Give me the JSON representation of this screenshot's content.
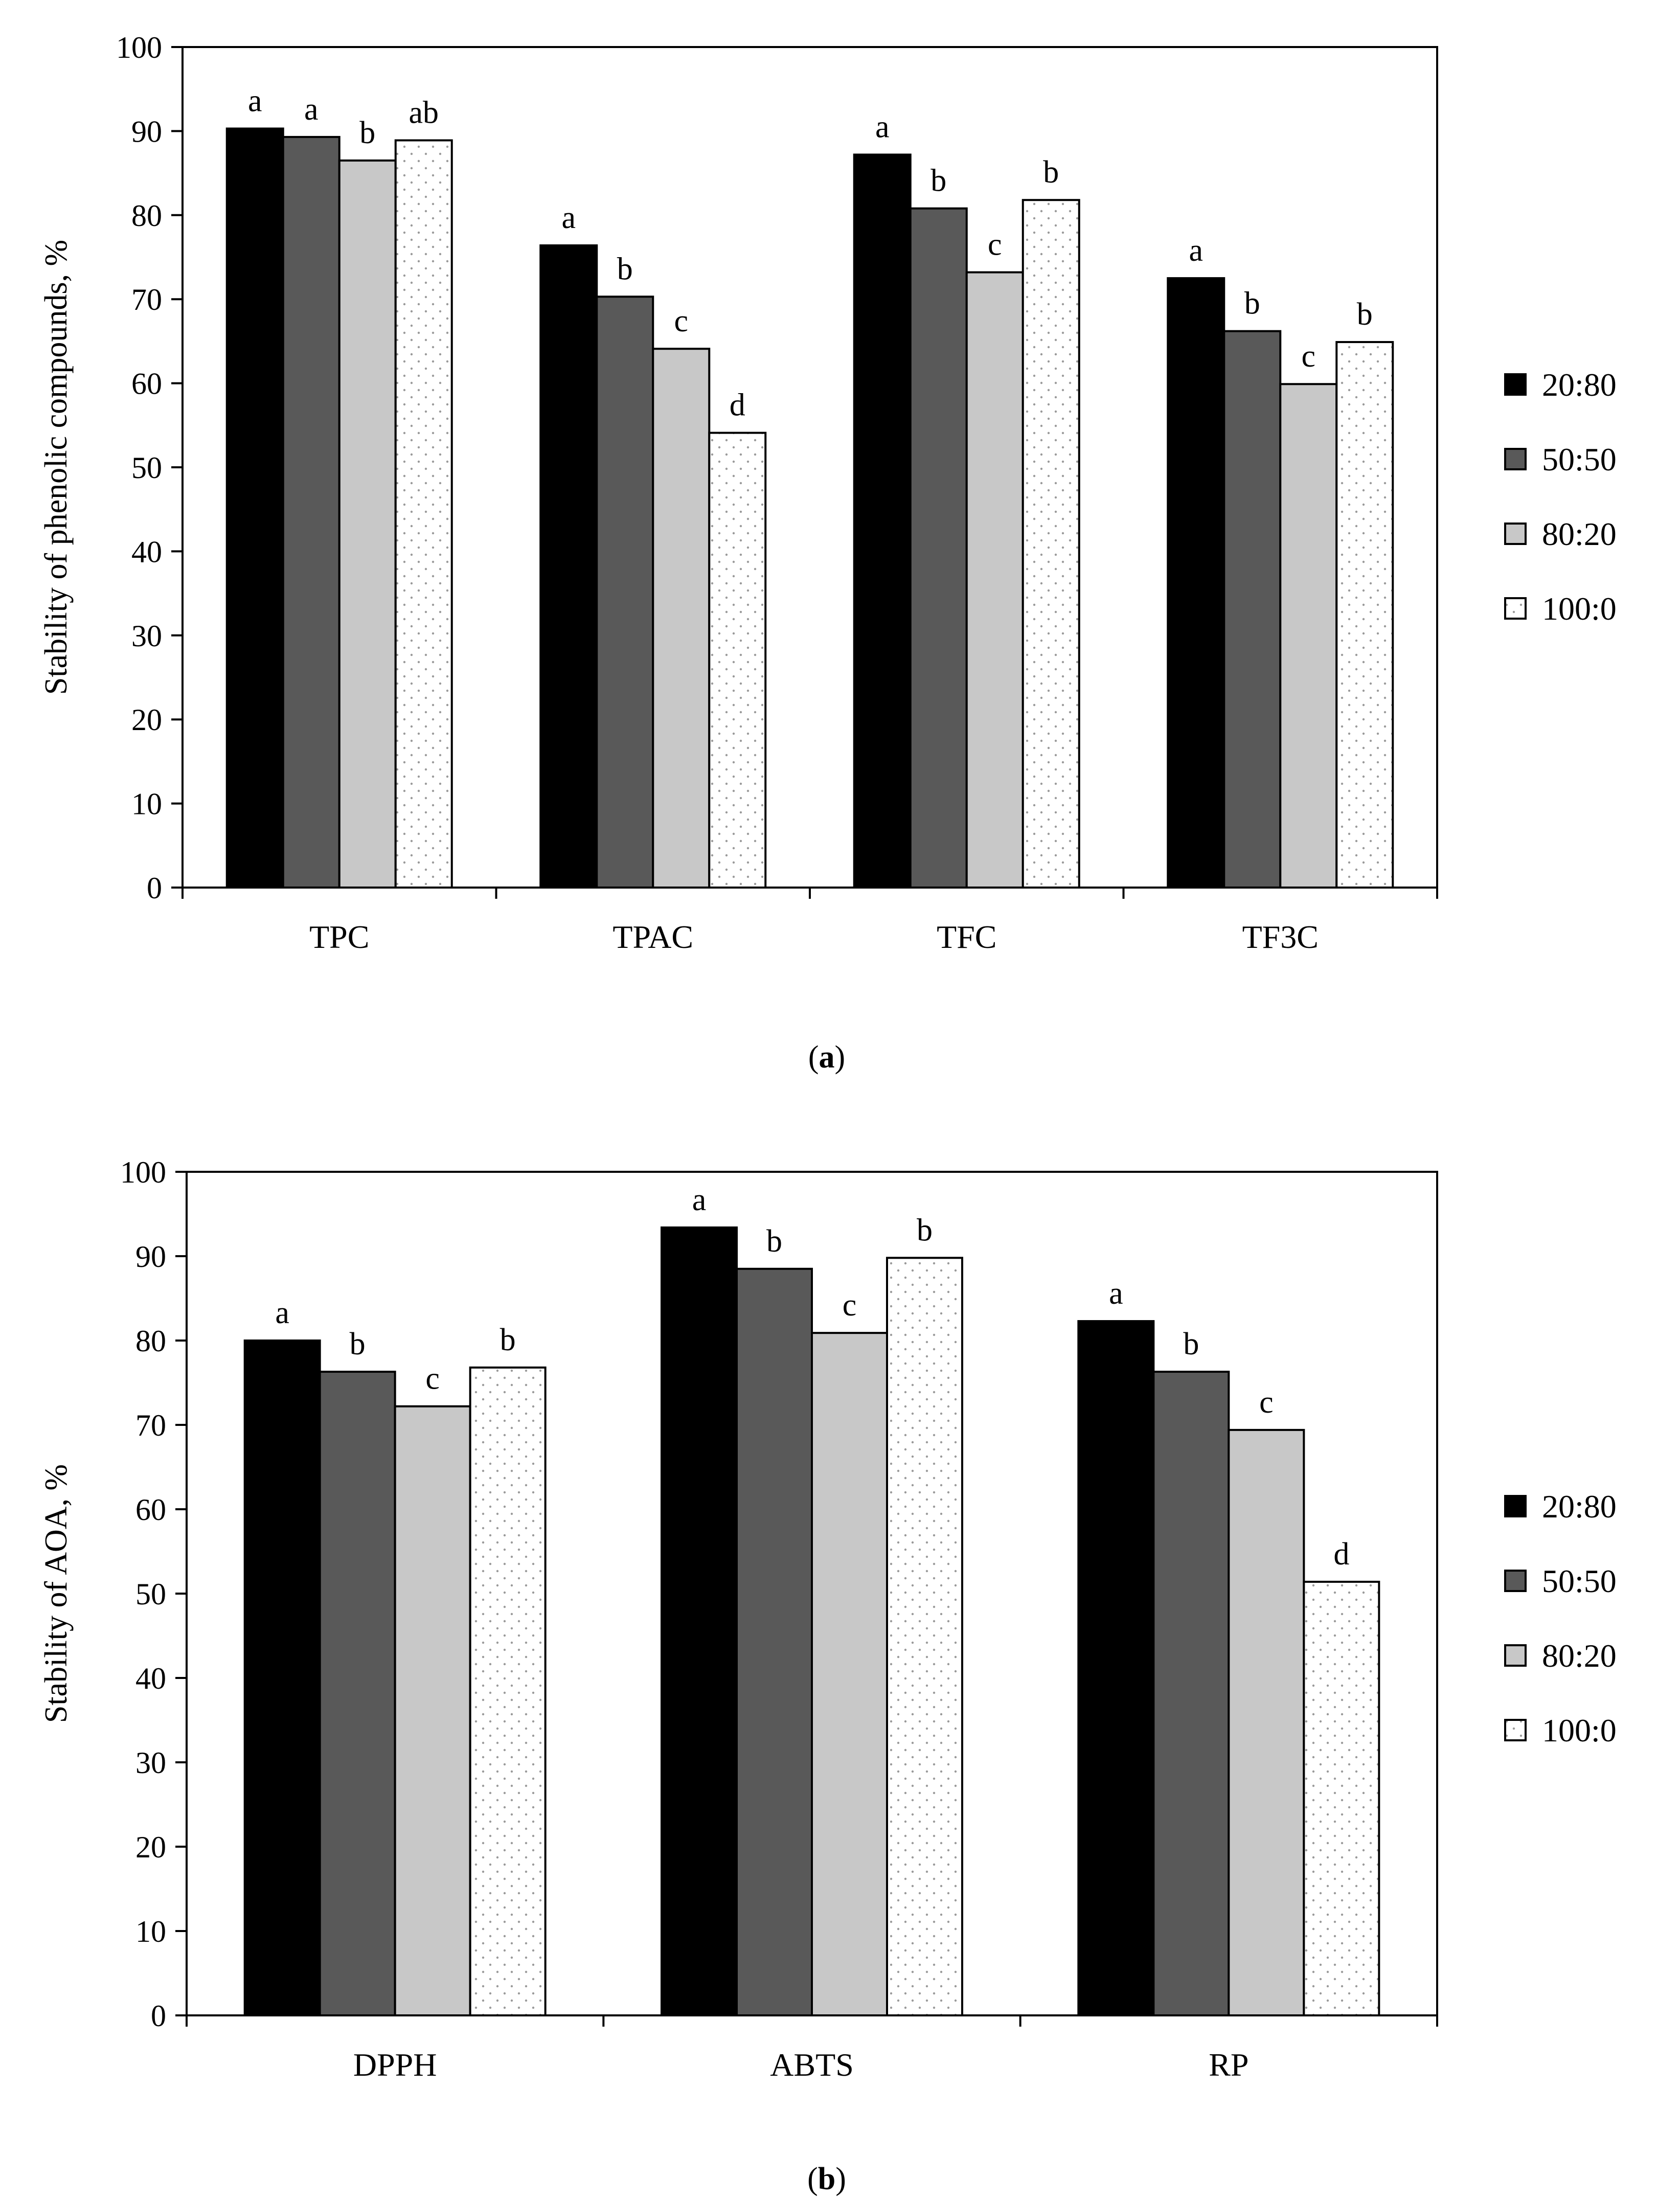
{
  "chart_data": [
    {
      "id": "a",
      "type": "bar",
      "panel_label": "a",
      "ylabel": "Stability of phenolic compounds, %",
      "xlabel": "",
      "ylim": [
        0,
        100
      ],
      "yticks": [
        0,
        10,
        20,
        30,
        40,
        50,
        60,
        70,
        80,
        90,
        100
      ],
      "grid": false,
      "legend_position": "right",
      "categories": [
        "TPC",
        "TPAC",
        "TFC",
        "TF3C"
      ],
      "series": [
        {
          "name": "20:80",
          "values": [
            90.3,
            76.4,
            87.2,
            72.5
          ],
          "letters": [
            "a",
            "a",
            "a",
            "a"
          ]
        },
        {
          "name": "50:50",
          "values": [
            89.3,
            70.3,
            80.8,
            66.2
          ],
          "letters": [
            "a",
            "b",
            "b",
            "b"
          ]
        },
        {
          "name": "80:20",
          "values": [
            86.5,
            64.1,
            73.2,
            59.9
          ],
          "letters": [
            "b",
            "c",
            "c",
            "c"
          ]
        },
        {
          "name": "100:0",
          "values": [
            88.9,
            54.1,
            81.8,
            64.9
          ],
          "letters": [
            "ab",
            "d",
            "b",
            "b"
          ]
        }
      ]
    },
    {
      "id": "b",
      "type": "bar",
      "panel_label": "b",
      "ylabel": "Stability of AOA, %",
      "xlabel": "",
      "ylim": [
        0,
        100
      ],
      "yticks": [
        0,
        10,
        20,
        30,
        40,
        50,
        60,
        70,
        80,
        90,
        100
      ],
      "grid": false,
      "legend_position": "right",
      "categories": [
        "DPPH",
        "ABTS",
        "RP"
      ],
      "series": [
        {
          "name": "20:80",
          "values": [
            80.0,
            93.4,
            82.3
          ],
          "letters": [
            "a",
            "a",
            "a"
          ]
        },
        {
          "name": "50:50",
          "values": [
            76.3,
            88.5,
            76.3
          ],
          "letters": [
            "b",
            "b",
            "b"
          ]
        },
        {
          "name": "80:20",
          "values": [
            72.2,
            80.9,
            69.4
          ],
          "letters": [
            "c",
            "c",
            "c"
          ]
        },
        {
          "name": "100:0",
          "values": [
            76.8,
            89.8,
            51.4
          ],
          "letters": [
            "b",
            "b",
            "d"
          ]
        }
      ]
    }
  ],
  "colors": {
    "series_fills": [
      "#000000",
      "#595959",
      "#c8c8c8",
      "#ffffff"
    ],
    "outline": "#000000",
    "dot_pattern": "#9a9a9a"
  }
}
